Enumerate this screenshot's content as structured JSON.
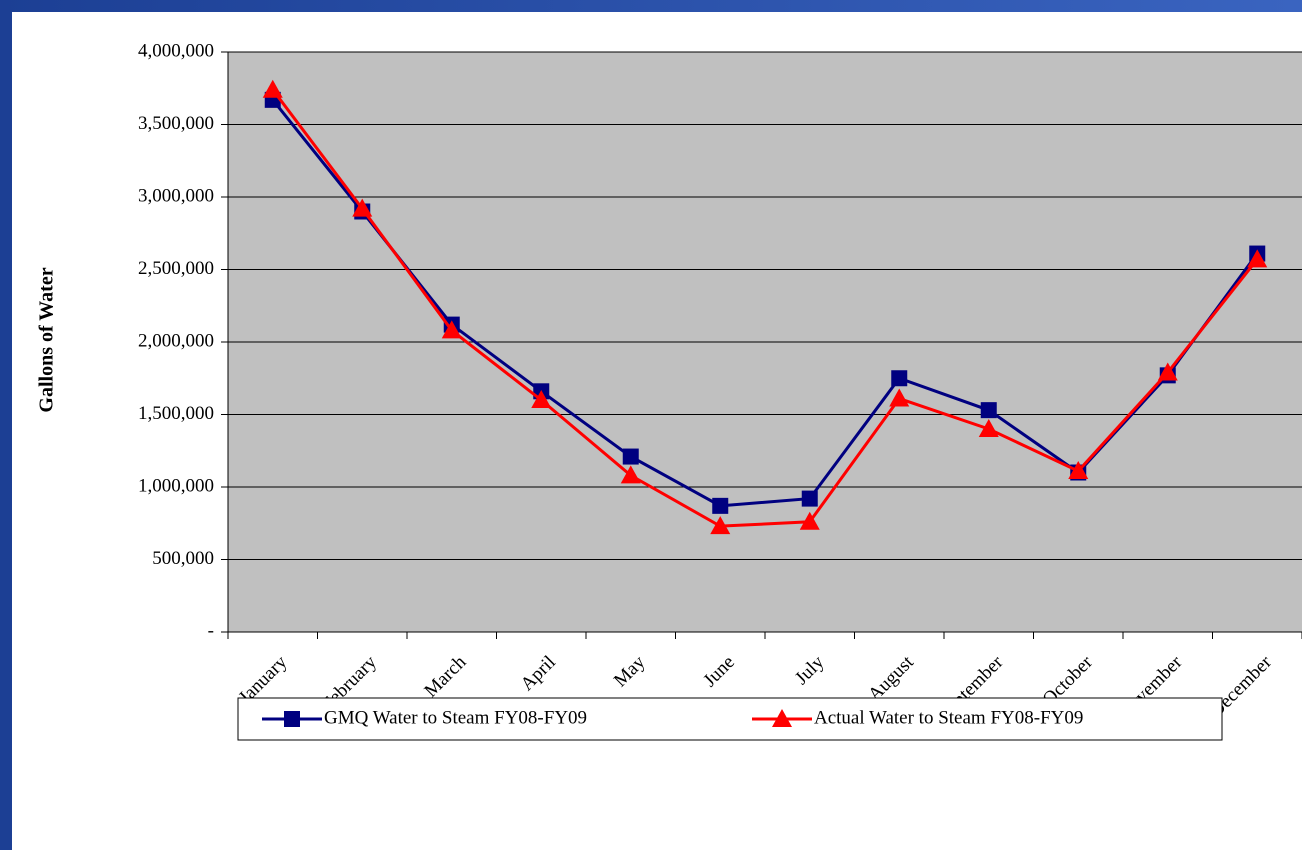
{
  "chart_data": {
    "type": "line",
    "y_label": "Gallons of Water",
    "categories": [
      "January",
      "February",
      "March",
      "April",
      "May",
      "June",
      "July",
      "August",
      "September",
      "October",
      "November",
      "December"
    ],
    "series": [
      {
        "name": "GMQ Water to Steam FY08-FY09",
        "color": "#000080",
        "marker": "square",
        "values": [
          3670000,
          2900000,
          2120000,
          1660000,
          1210000,
          870000,
          920000,
          1750000,
          1530000,
          1100000,
          1770000,
          2610000
        ]
      },
      {
        "name": "Actual Water to Steam FY08-FY09",
        "color": "#ff0000",
        "marker": "triangle",
        "values": [
          3740000,
          2920000,
          2080000,
          1600000,
          1080000,
          730000,
          760000,
          1610000,
          1400000,
          1110000,
          1790000,
          2570000
        ]
      }
    ],
    "ylim": [
      0,
      4000000
    ],
    "yticks": [
      {
        "value": 0,
        "label": "-"
      },
      {
        "value": 500000,
        "label": "500,000"
      },
      {
        "value": 1000000,
        "label": "1,000,000"
      },
      {
        "value": 1500000,
        "label": "1,500,000"
      },
      {
        "value": 2000000,
        "label": "2,000,000"
      },
      {
        "value": 2500000,
        "label": "2,500,000"
      },
      {
        "value": 3000000,
        "label": "3,000,000"
      },
      {
        "value": 3500000,
        "label": "3,500,000"
      },
      {
        "value": 4000000,
        "label": "4,000,000"
      }
    ],
    "grid": true,
    "legend": "bottom",
    "plot_background": "#c0c0c0"
  }
}
